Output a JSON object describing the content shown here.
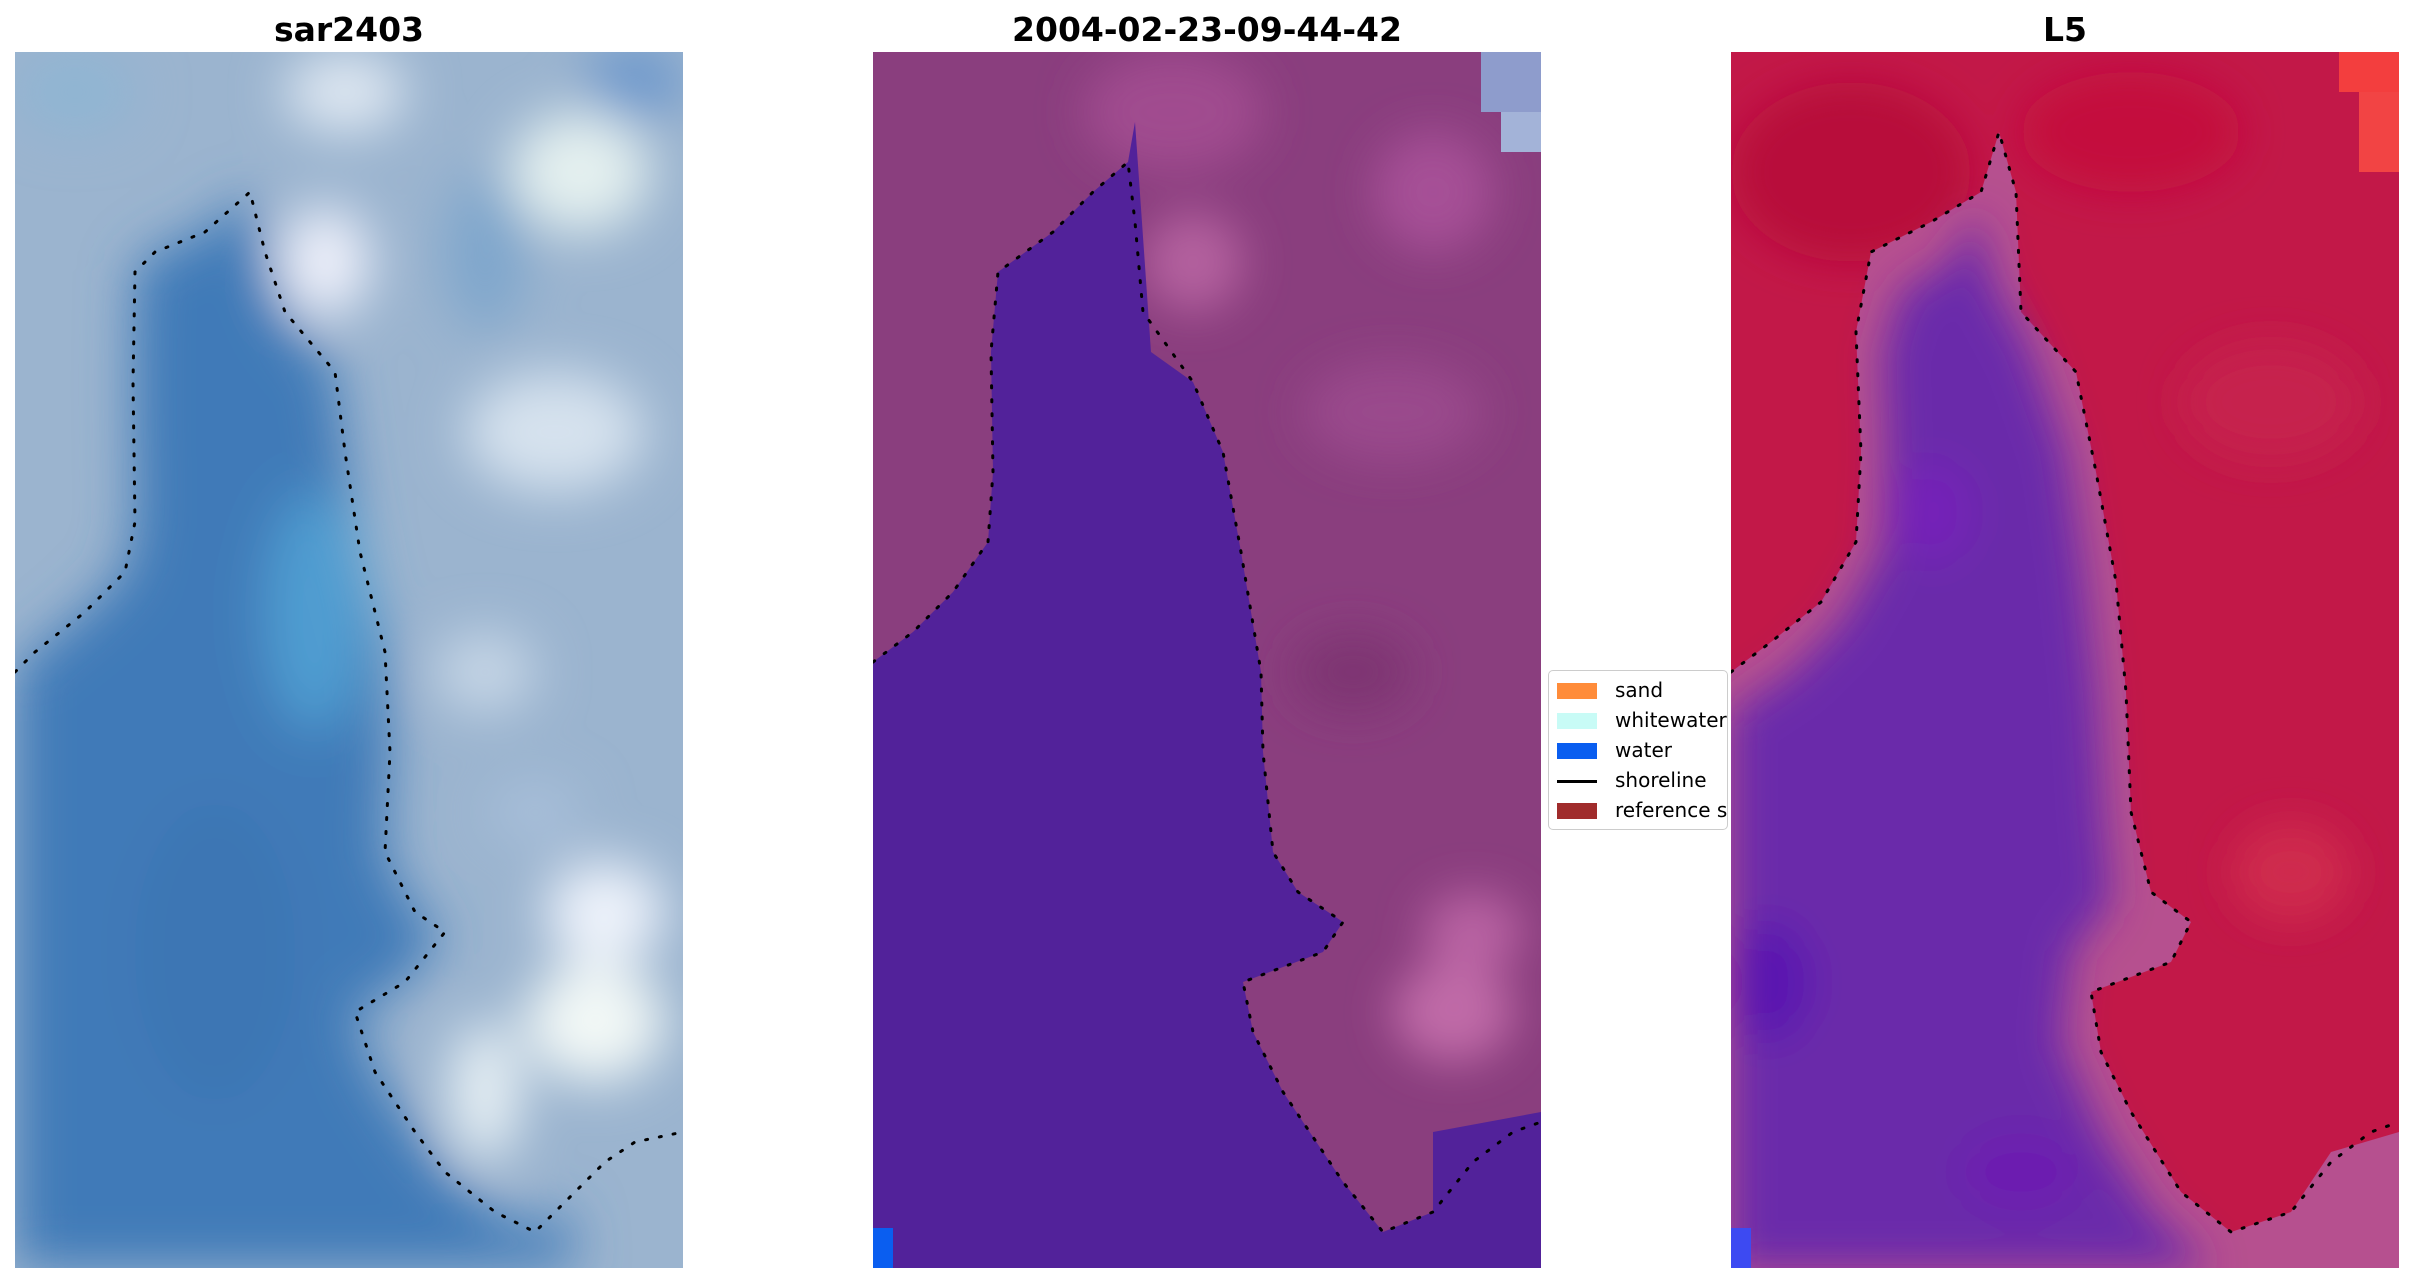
{
  "figure": {
    "panels": [
      {
        "title": "sar2403"
      },
      {
        "title": "2004-02-23-09-44-42"
      },
      {
        "title": "L5"
      }
    ],
    "legend": {
      "placement": "center",
      "items": [
        {
          "label": "sand",
          "color": "#ff8c3a",
          "kind": "patch"
        },
        {
          "label": "whitewater",
          "color": "#c8fbf6",
          "kind": "patch"
        },
        {
          "label": "water",
          "color": "#0a5ef0",
          "kind": "patch"
        },
        {
          "label": "shoreline",
          "color": "#000000",
          "kind": "line"
        },
        {
          "label": "reference s",
          "color": "#a02c2c",
          "kind": "patch"
        }
      ]
    },
    "colors": {
      "rgb_water": "#3f7ab8",
      "rgb_land": "#9bb4cf",
      "classified_water": "#52229a",
      "classified_land": "#8a3e7e",
      "index_water": "#6a2aaa",
      "index_land": "#c21848"
    }
  }
}
